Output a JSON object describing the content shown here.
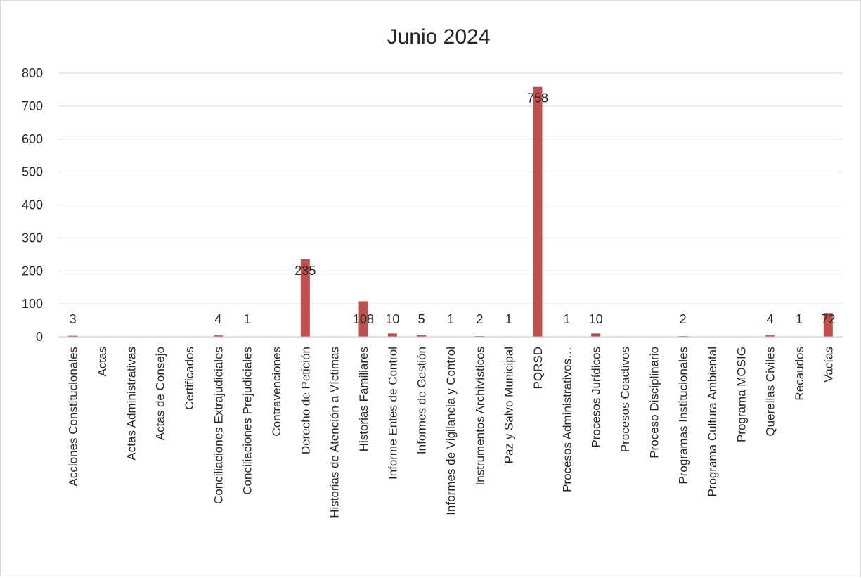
{
  "chart_data": {
    "type": "bar",
    "title": "Junio 2024",
    "xlabel": "",
    "ylabel": "",
    "ylim": [
      0,
      800
    ],
    "yticks": [
      "0",
      "100",
      "200",
      "300",
      "400",
      "500",
      "600",
      "700",
      "800"
    ],
    "grid": true,
    "legend": "none",
    "bar_color": "#C0504D",
    "categories": [
      "Acciones Constitucionales",
      "Actas",
      "Actas Administrativas",
      "Actas de Consejo",
      "Certificados",
      "Conciliaciones Extrajudiciales",
      "Conciliaciones Prejudiciales",
      "Contravenciones",
      "Derecho de Petición",
      "Historias de Atención a Víctimas",
      "Historias Familiares",
      "Informe Entes de Control",
      "Informes de Gestión",
      "Informes de Vigilancia y Control",
      "Instrumentos Archivísticos",
      "Paz y Salvo Municipal",
      "PQRSD",
      "Procesos Administrativos…",
      "Procesos Jurídicos",
      "Procesos Coactivos",
      "Proceso Disciplinario",
      "Programas Institucionales",
      "Programa Cultura Ambiental",
      "Programa MOSIG",
      "Querellas Civiles",
      "Recaudos",
      "Vacías"
    ],
    "values": [
      3,
      null,
      null,
      null,
      null,
      4,
      1,
      null,
      235,
      null,
      108,
      10,
      5,
      1,
      2,
      1,
      758,
      1,
      10,
      null,
      null,
      2,
      null,
      null,
      4,
      1,
      72
    ],
    "data_labels": [
      "3",
      "",
      "",
      "",
      "",
      "4",
      "1",
      "",
      "235",
      "",
      "108",
      "10",
      "5",
      "1",
      "2",
      "1",
      "758",
      "1",
      "10",
      "",
      "",
      "2",
      "",
      "",
      "4",
      "1",
      "72"
    ]
  }
}
